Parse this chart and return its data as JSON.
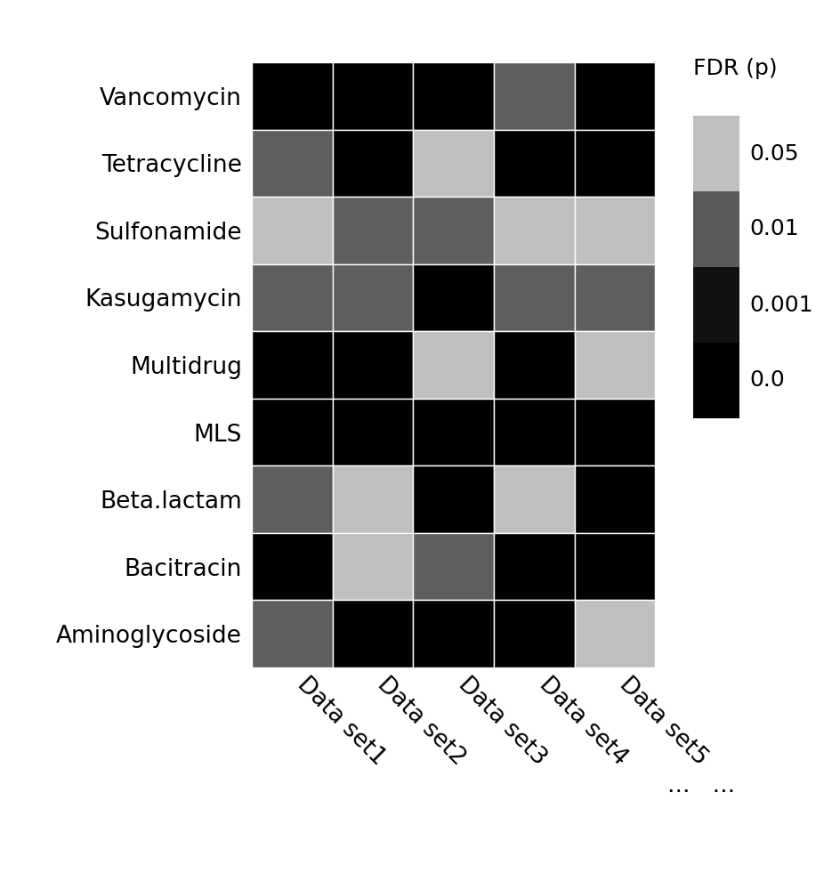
{
  "rows": [
    "Vancomycin",
    "Tetracycline",
    "Sulfonamide",
    "Kasugamycin",
    "Multidrug",
    "MLS",
    "Beta.lactam",
    "Bacitracin",
    "Aminoglycoside"
  ],
  "cols": [
    "Data set1",
    "Data set2",
    "Data set3",
    "Data set4",
    "Data set5"
  ],
  "heatmap": [
    [
      0.0,
      0.0,
      0.0,
      0.01,
      0.0
    ],
    [
      0.01,
      0.0,
      0.05,
      0.0,
      0.0
    ],
    [
      0.05,
      0.01,
      0.01,
      0.05,
      0.05
    ],
    [
      0.01,
      0.01,
      0.0,
      0.01,
      0.01
    ],
    [
      0.0,
      0.0,
      0.05,
      0.0,
      0.05
    ],
    [
      0.0,
      0.0,
      0.0,
      0.0,
      0.0
    ],
    [
      0.01,
      0.05,
      0.0,
      0.05,
      0.0
    ],
    [
      0.0,
      0.05,
      0.01,
      0.0,
      0.0
    ],
    [
      0.01,
      0.0,
      0.0,
      0.0,
      0.05
    ]
  ],
  "legend_title": "FDR (p)",
  "legend_labels": [
    "0.05",
    "0.01",
    "0.001",
    "0.0"
  ],
  "legend_colors": [
    "#c0c0c0",
    "#5a5a5a",
    "#111111",
    "#000000"
  ],
  "background_color": "#ffffff",
  "cell_line_color": "#ffffff",
  "dots_label": "...   ...",
  "label_fontsize": 20,
  "tick_fontsize": 19,
  "legend_fontsize": 18
}
